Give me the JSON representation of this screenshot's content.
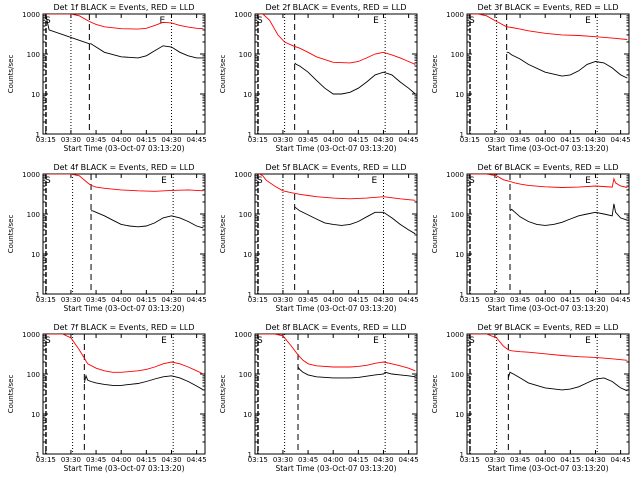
{
  "figure": {
    "ylabel": "Counts/sec",
    "xlabel": "Start Time (03-Oct-07 03:13:20)",
    "legend_text": "BLACK = Events, RED = LLD",
    "marker_start": "S",
    "marker_end": "E",
    "colors": {
      "events": "#000000",
      "lld": "#ff0000",
      "axes": "#000000"
    }
  },
  "chart_data": [
    {
      "type": "line",
      "title": "Det 1f BLACK = Events, RED = LLD",
      "x_ticks": [
        "03:15",
        "03:30",
        "03:45",
        "04:00",
        "04:15",
        "04:30",
        "04:45"
      ],
      "y_ticks": [
        "1",
        "10",
        "100",
        "1000"
      ],
      "y_scale": "log",
      "ylim": [
        1,
        1000
      ],
      "vlines_dotted": [
        "03:30",
        "04:30"
      ],
      "vline_dashed": "03:41",
      "series": [
        {
          "name": "Events",
          "color": "#000000",
          "x": [
            "03:15",
            "03:16",
            "03:17",
            "03:41",
            "03:42",
            "03:45",
            "03:50",
            "04:00",
            "04:10",
            "04:15",
            "04:20",
            "04:25",
            "04:30",
            "04:35",
            "04:40",
            "04:45",
            "04:49"
          ],
          "y": [
            1000,
            600,
            400,
            180,
            180,
            150,
            110,
            85,
            80,
            90,
            120,
            160,
            150,
            110,
            90,
            80,
            80
          ]
        },
        {
          "name": "LLD",
          "color": "#ff0000",
          "x": [
            "03:15",
            "03:16",
            "03:17",
            "03:30",
            "03:35",
            "03:41",
            "03:45",
            "03:50",
            "04:00",
            "04:10",
            "04:15",
            "04:20",
            "04:25",
            "04:30",
            "04:35",
            "04:40",
            "04:45",
            "04:49"
          ],
          "y": [
            1000,
            1000,
            1000,
            1000,
            900,
            650,
            550,
            480,
            430,
            420,
            440,
            520,
            620,
            600,
            520,
            470,
            440,
            430
          ]
        }
      ]
    },
    {
      "type": "line",
      "title": "Det 2f BLACK = Events, RED = LLD",
      "x_ticks": [
        "03:15",
        "03:30",
        "03:45",
        "04:00",
        "04:15",
        "04:30",
        "04:45"
      ],
      "y_ticks": [
        "1",
        "10",
        "100",
        "1000"
      ],
      "y_scale": "log",
      "ylim": [
        1,
        1000
      ],
      "vlines_dotted": [
        "03:31",
        "04:31"
      ],
      "vline_dashed": "03:37",
      "series": [
        {
          "name": "Events",
          "color": "#000000",
          "x": [
            "03:37",
            "03:38",
            "03:40",
            "03:45",
            "03:50",
            "03:55",
            "04:00",
            "04:05",
            "04:10",
            "04:15",
            "04:20",
            "04:25",
            "04:30",
            "04:35",
            "04:40",
            "04:45",
            "04:49"
          ],
          "y": [
            60,
            55,
            50,
            35,
            22,
            14,
            10,
            10,
            11,
            14,
            20,
            30,
            35,
            30,
            20,
            14,
            10
          ]
        },
        {
          "name": "LLD",
          "color": "#ff0000",
          "x": [
            "03:15",
            "03:16",
            "03:18",
            "03:22",
            "03:27",
            "03:31",
            "03:36",
            "03:40",
            "03:45",
            "03:50",
            "04:00",
            "04:10",
            "04:15",
            "04:20",
            "04:25",
            "04:30",
            "04:35",
            "04:40",
            "04:45",
            "04:49"
          ],
          "y": [
            1000,
            1000,
            1000,
            700,
            300,
            200,
            160,
            140,
            110,
            85,
            62,
            60,
            65,
            80,
            100,
            110,
            95,
            80,
            65,
            55
          ]
        }
      ]
    },
    {
      "type": "line",
      "title": "Det 3f BLACK = Events, RED = LLD",
      "x_ticks": [
        "03:15",
        "03:30",
        "03:45",
        "04:00",
        "04:15",
        "04:30",
        "04:45"
      ],
      "y_ticks": [
        "1",
        "10",
        "100",
        "1000"
      ],
      "y_scale": "log",
      "ylim": [
        1,
        1000
      ],
      "vlines_dotted": [
        "03:31",
        "04:31"
      ],
      "vline_dashed": "03:37",
      "series": [
        {
          "name": "Events",
          "color": "#000000",
          "x": [
            "03:37",
            "03:38",
            "03:40",
            "03:45",
            "03:50",
            "04:00",
            "04:10",
            "04:15",
            "04:20",
            "04:25",
            "04:30",
            "04:35",
            "04:40",
            "04:45",
            "04:49"
          ],
          "y": [
            110,
            110,
            95,
            75,
            55,
            35,
            28,
            30,
            38,
            55,
            65,
            60,
            45,
            30,
            25
          ]
        },
        {
          "name": "LLD",
          "color": "#ff0000",
          "x": [
            "03:15",
            "03:16",
            "03:20",
            "03:25",
            "03:31",
            "03:37",
            "03:40",
            "03:45",
            "03:50",
            "04:00",
            "04:10",
            "04:20",
            "04:30",
            "04:40",
            "04:49"
          ],
          "y": [
            1000,
            1000,
            1000,
            900,
            650,
            480,
            460,
            420,
            380,
            330,
            300,
            290,
            270,
            250,
            230
          ]
        }
      ]
    },
    {
      "type": "line",
      "title": "Det 4f BLACK = Events, RED = LLD",
      "x_ticks": [
        "03:15",
        "03:30",
        "03:45",
        "04:00",
        "04:15",
        "04:30",
        "04:45"
      ],
      "y_ticks": [
        "1",
        "10",
        "100",
        "1000"
      ],
      "y_scale": "log",
      "ylim": [
        1,
        1000
      ],
      "vlines_dotted": [
        "03:31",
        "04:31"
      ],
      "vline_dashed": "03:42",
      "series": [
        {
          "name": "Events",
          "color": "#000000",
          "x": [
            "03:42",
            "03:43",
            "03:45",
            "03:50",
            "03:55",
            "04:00",
            "04:05",
            "04:10",
            "04:15",
            "04:20",
            "04:25",
            "04:30",
            "04:35",
            "04:40",
            "04:45",
            "04:49"
          ],
          "y": [
            120,
            120,
            110,
            90,
            70,
            55,
            50,
            48,
            50,
            60,
            80,
            90,
            80,
            65,
            50,
            45
          ]
        },
        {
          "name": "LLD",
          "color": "#ff0000",
          "x": [
            "03:15",
            "03:16",
            "03:20",
            "03:25",
            "03:30",
            "03:35",
            "03:40",
            "03:42",
            "03:45",
            "03:50",
            "04:00",
            "04:10",
            "04:20",
            "04:30",
            "04:40",
            "04:49"
          ],
          "y": [
            1000,
            1000,
            1000,
            1000,
            1000,
            900,
            600,
            520,
            470,
            440,
            400,
            380,
            370,
            390,
            400,
            380
          ]
        }
      ]
    },
    {
      "type": "line",
      "title": "Det 5f BLACK = Events, RED = LLD",
      "x_ticks": [
        "03:15",
        "03:30",
        "03:45",
        "04:00",
        "04:15",
        "04:30",
        "04:45"
      ],
      "y_ticks": [
        "1",
        "10",
        "100",
        "1000"
      ],
      "y_scale": "log",
      "ylim": [
        1,
        1000
      ],
      "vlines_dotted": [
        "03:30",
        "04:30"
      ],
      "vline_dashed": "03:37",
      "series": [
        {
          "name": "Events",
          "color": "#000000",
          "x": [
            "03:37",
            "03:38",
            "03:40",
            "03:45",
            "03:50",
            "03:55",
            "04:00",
            "04:05",
            "04:10",
            "04:15",
            "04:20",
            "04:25",
            "04:30",
            "04:35",
            "04:40",
            "04:45",
            "04:49"
          ],
          "y": [
            150,
            140,
            120,
            95,
            75,
            60,
            55,
            52,
            55,
            65,
            85,
            110,
            110,
            80,
            55,
            40,
            32
          ]
        },
        {
          "name": "LLD",
          "color": "#ff0000",
          "x": [
            "03:15",
            "03:16",
            "03:18",
            "03:20",
            "03:25",
            "03:30",
            "03:35",
            "03:37",
            "03:40",
            "03:45",
            "03:50",
            "04:00",
            "04:10",
            "04:20",
            "04:30",
            "04:40",
            "04:49"
          ],
          "y": [
            1000,
            1000,
            900,
            700,
            500,
            380,
            340,
            330,
            310,
            290,
            270,
            250,
            240,
            250,
            270,
            240,
            220
          ]
        }
      ]
    },
    {
      "type": "line",
      "title": "Det 6f BLACK = Events, RED = LLD",
      "x_ticks": [
        "03:15",
        "03:30",
        "03:45",
        "04:00",
        "04:15",
        "04:30",
        "04:45"
      ],
      "y_ticks": [
        "1",
        "10",
        "100",
        "1000"
      ],
      "y_scale": "log",
      "ylim": [
        1,
        1000
      ],
      "vlines_dotted": [
        "03:31",
        "04:31"
      ],
      "vline_dashed": "03:39",
      "series": [
        {
          "name": "Events",
          "color": "#000000",
          "x": [
            "03:39",
            "03:40",
            "03:42",
            "03:45",
            "03:50",
            "03:55",
            "04:00",
            "04:05",
            "04:10",
            "04:15",
            "04:20",
            "04:25",
            "04:30",
            "04:35",
            "04:40",
            "04:41",
            "04:42",
            "04:45",
            "04:49"
          ],
          "y": [
            120,
            130,
            110,
            85,
            65,
            55,
            52,
            55,
            62,
            75,
            90,
            100,
            110,
            100,
            90,
            180,
            110,
            80,
            70
          ]
        },
        {
          "name": "LLD",
          "color": "#ff0000",
          "x": [
            "03:15",
            "03:16",
            "03:20",
            "03:25",
            "03:31",
            "03:35",
            "03:39",
            "03:42",
            "03:45",
            "03:50",
            "04:00",
            "04:10",
            "04:20",
            "04:30",
            "04:40",
            "04:41",
            "04:42",
            "04:45",
            "04:49"
          ],
          "y": [
            1000,
            1000,
            1000,
            1000,
            900,
            720,
            650,
            600,
            560,
            520,
            480,
            460,
            470,
            500,
            470,
            760,
            600,
            500,
            460
          ]
        }
      ]
    },
    {
      "type": "line",
      "title": "Det 7f BLACK = Events, RED = LLD",
      "x_ticks": [
        "03:15",
        "03:30",
        "03:45",
        "04:00",
        "04:15",
        "04:30",
        "04:45"
      ],
      "y_ticks": [
        "1",
        "10",
        "100",
        "1000"
      ],
      "y_scale": "log",
      "ylim": [
        1,
        1000
      ],
      "vlines_dotted": [
        "03:31",
        "04:31"
      ],
      "vline_dashed": "03:38",
      "series": [
        {
          "name": "Events",
          "color": "#000000",
          "x": [
            "03:38",
            "03:39",
            "03:40",
            "03:42",
            "03:45",
            "03:50",
            "03:55",
            "04:00",
            "04:05",
            "04:10",
            "04:15",
            "04:20",
            "04:25",
            "04:30",
            "04:35",
            "04:40",
            "04:45",
            "04:49"
          ],
          "y": [
            60,
            90,
            70,
            65,
            60,
            55,
            52,
            52,
            55,
            58,
            65,
            75,
            85,
            90,
            80,
            65,
            50,
            40
          ]
        },
        {
          "name": "LLD",
          "color": "#ff0000",
          "x": [
            "03:15",
            "03:16",
            "03:20",
            "03:25",
            "03:30",
            "03:35",
            "03:38",
            "03:40",
            "03:45",
            "03:50",
            "03:55",
            "04:00",
            "04:05",
            "04:10",
            "04:15",
            "04:20",
            "04:25",
            "04:30",
            "04:35",
            "04:40",
            "04:45",
            "04:49"
          ],
          "y": [
            1000,
            1000,
            1000,
            1000,
            800,
            400,
            250,
            180,
            140,
            120,
            110,
            110,
            115,
            120,
            130,
            150,
            180,
            200,
            180,
            150,
            120,
            100
          ]
        }
      ]
    },
    {
      "type": "line",
      "title": "Det 8f BLACK = Events, RED = LLD",
      "x_ticks": [
        "03:15",
        "03:30",
        "03:45",
        "04:00",
        "04:15",
        "04:30",
        "04:45"
      ],
      "y_ticks": [
        "1",
        "10",
        "100",
        "1000"
      ],
      "y_scale": "log",
      "ylim": [
        1,
        1000
      ],
      "vlines_dotted": [
        "03:31",
        "04:31"
      ],
      "vline_dashed": "03:39",
      "series": [
        {
          "name": "Events",
          "color": "#000000",
          "x": [
            "03:39",
            "03:40",
            "03:42",
            "03:45",
            "03:50",
            "04:00",
            "04:10",
            "04:15",
            "04:20",
            "04:25",
            "04:30",
            "04:31",
            "04:35",
            "04:40",
            "04:45",
            "04:49"
          ],
          "y": [
            150,
            130,
            110,
            95,
            85,
            80,
            80,
            82,
            88,
            95,
            100,
            110,
            100,
            95,
            90,
            85
          ]
        },
        {
          "name": "LLD",
          "color": "#ff0000",
          "x": [
            "03:15",
            "03:16",
            "03:20",
            "03:25",
            "03:30",
            "03:35",
            "03:39",
            "03:42",
            "03:45",
            "03:50",
            "04:00",
            "04:10",
            "04:15",
            "04:20",
            "04:25",
            "04:30",
            "04:35",
            "04:40",
            "04:45",
            "04:49"
          ],
          "y": [
            1000,
            1000,
            1000,
            1000,
            900,
            500,
            300,
            220,
            180,
            160,
            150,
            150,
            155,
            165,
            185,
            200,
            180,
            160,
            140,
            120
          ]
        }
      ]
    },
    {
      "type": "line",
      "title": "Det 9f BLACK = Events, RED = LLD",
      "x_ticks": [
        "03:15",
        "03:30",
        "03:45",
        "04:00",
        "04:15",
        "04:30",
        "04:45"
      ],
      "y_ticks": [
        "1",
        "10",
        "100",
        "1000"
      ],
      "y_scale": "log",
      "ylim": [
        1,
        1000
      ],
      "vlines_dotted": [
        "03:31",
        "04:31"
      ],
      "vline_dashed": "03:38",
      "series": [
        {
          "name": "Events",
          "color": "#000000",
          "x": [
            "03:38",
            "03:39",
            "03:41",
            "03:45",
            "03:50",
            "04:00",
            "04:10",
            "04:15",
            "04:20",
            "04:25",
            "04:30",
            "04:35",
            "04:40",
            "04:45",
            "04:49"
          ],
          "y": [
            80,
            110,
            100,
            80,
            60,
            45,
            40,
            42,
            48,
            60,
            75,
            80,
            65,
            45,
            38
          ]
        },
        {
          "name": "LLD",
          "color": "#ff0000",
          "x": [
            "03:15",
            "03:16",
            "03:20",
            "03:25",
            "03:31",
            "03:35",
            "03:38",
            "03:40",
            "03:45",
            "03:50",
            "04:00",
            "04:10",
            "04:20",
            "04:30",
            "04:40",
            "04:49"
          ],
          "y": [
            1000,
            1000,
            1000,
            1000,
            800,
            500,
            400,
            380,
            360,
            350,
            320,
            290,
            270,
            260,
            240,
            220
          ]
        }
      ]
    }
  ]
}
